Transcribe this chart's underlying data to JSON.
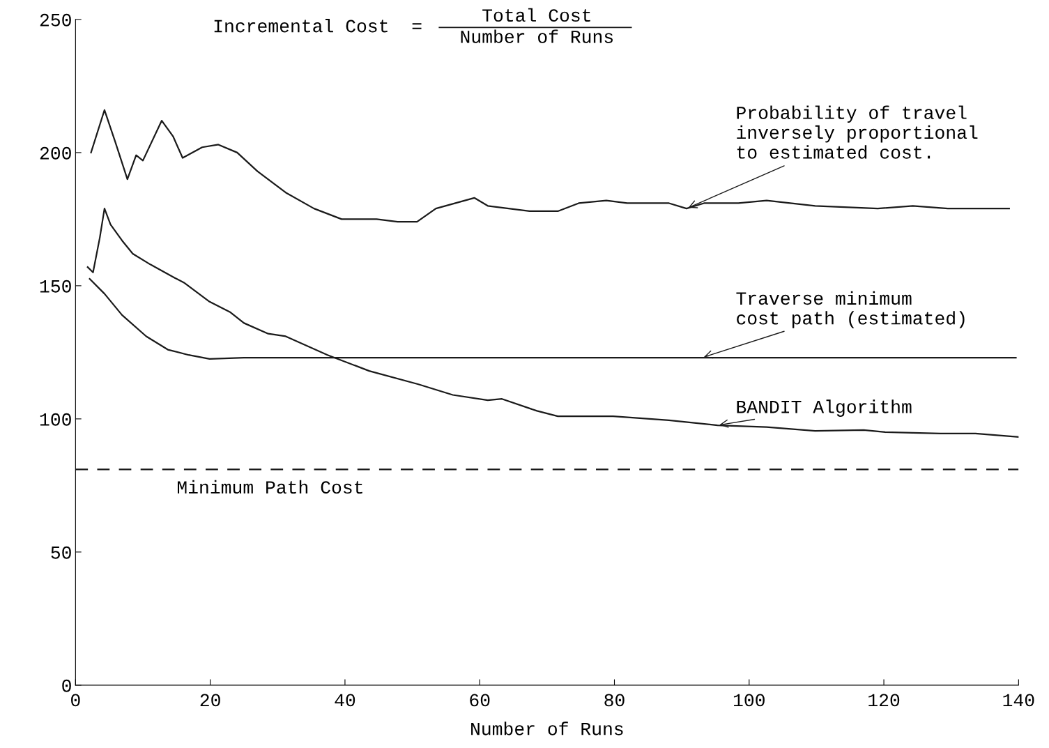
{
  "chart_data": {
    "type": "line",
    "xlabel": "Number of Runs",
    "annotations": [
      "Incremental Cost  =",
      "Total Cost",
      "Number of Runs"
    ],
    "xlim": [
      0,
      140
    ],
    "ylim": [
      0,
      250
    ],
    "xticks": [
      0,
      20,
      40,
      60,
      80,
      100,
      120,
      140
    ],
    "yticks": [
      0,
      50,
      100,
      150,
      200,
      250
    ],
    "grid": false,
    "legend": false,
    "marker": "none",
    "line_style": "solid",
    "series": [
      {
        "name": "Probability of travel\ninversely proportional\nto estimated cost.",
        "color": "#1a1a1a",
        "x": [
          2.3,
          4.3,
          5.9,
          7.7,
          9.0,
          10,
          12.8,
          14.5,
          15.9,
          18.8,
          21.2,
          24,
          27,
          31.2,
          35.4,
          39.5,
          44.7,
          47.8,
          50.7,
          53.5,
          59.2,
          61.2,
          67.4,
          71.6,
          74.7,
          78.8,
          81.9,
          88.1,
          90.7,
          93.3,
          98.4,
          102.6,
          109.8,
          119.1,
          124.3,
          129.5,
          138.6
        ],
        "values": [
          200,
          216,
          204,
          190,
          199,
          197,
          212,
          206,
          198,
          202,
          203,
          200,
          193,
          185,
          179,
          175,
          175,
          174,
          174,
          179,
          183,
          180,
          178,
          178,
          181,
          182,
          181,
          181,
          179,
          181,
          181,
          182,
          180,
          179,
          180,
          179,
          179
        ]
      },
      {
        "name": "Traverse minimum\ncost path (estimated)",
        "color": "#1a1a1a",
        "x": [
          2.1,
          4.3,
          6.9,
          10.5,
          13.7,
          16.8,
          19.9,
          25,
          139.6
        ],
        "values": [
          152.6,
          147,
          139,
          131,
          126,
          124,
          122.5,
          123,
          123
        ]
      },
      {
        "name": "BANDIT Algorithm",
        "color": "#1a1a1a",
        "x": [
          1.8,
          2.6,
          3.6,
          4.3,
          5.2,
          6.9,
          8.5,
          11.1,
          14.7,
          16.2,
          19.9,
          23,
          25,
          28.6,
          31.2,
          37.4,
          43.6,
          50.9,
          56,
          61.2,
          63.3,
          68.5,
          71.6,
          79.8,
          88.1,
          95.3,
          102.6,
          109.8,
          117,
          120.2,
          128.4,
          133.6,
          140
        ],
        "values": [
          157,
          155,
          168,
          179,
          173,
          167,
          162,
          158,
          153,
          151,
          144,
          140,
          136,
          132,
          131,
          124,
          118,
          113,
          109,
          107,
          107.5,
          103,
          101,
          101,
          99.5,
          97.6,
          96.9,
          95.5,
          95.8,
          95,
          94.5,
          94.5,
          93.2
        ]
      }
    ],
    "ref_lines": [
      {
        "axis": "y",
        "value": 81,
        "label": "Minimum Path Cost",
        "line_style": "dashed",
        "color": "#1a1a1a"
      }
    ]
  }
}
